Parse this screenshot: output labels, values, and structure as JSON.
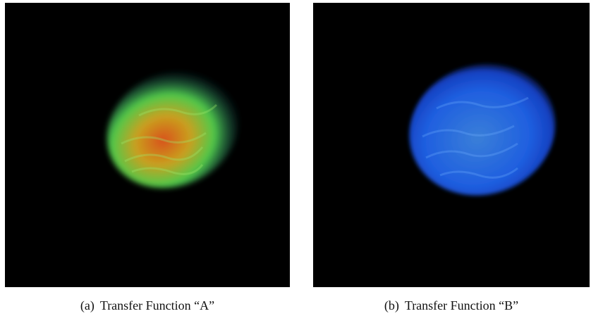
{
  "figure": {
    "panels": [
      {
        "label": "(a)",
        "caption": "Transfer Function “A”"
      },
      {
        "label": "(b)",
        "caption": "Transfer Function “B”"
      }
    ]
  }
}
